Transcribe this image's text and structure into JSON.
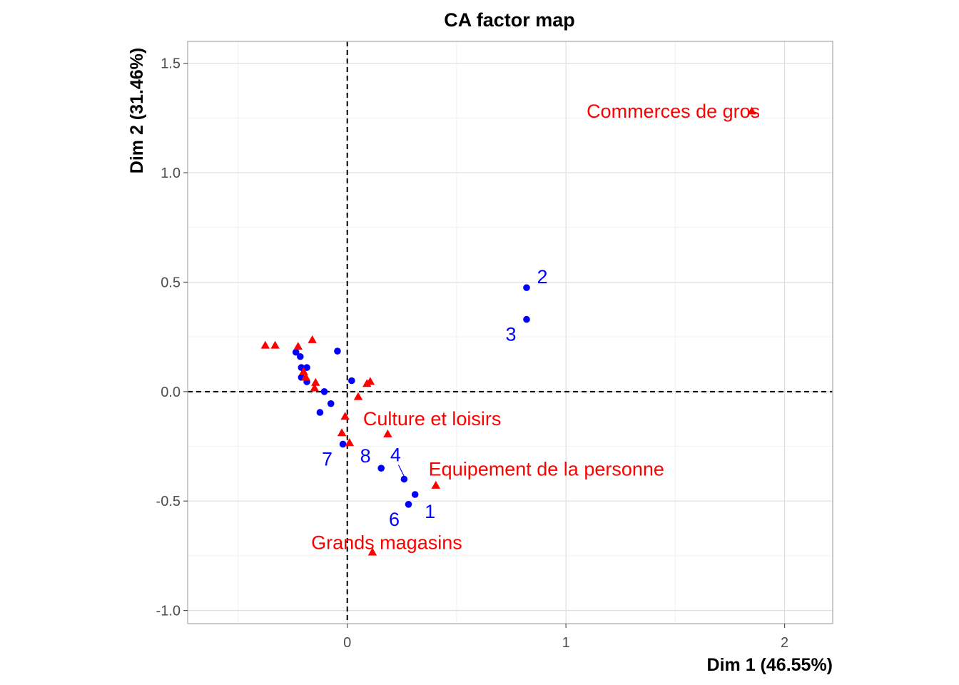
{
  "chart_data": {
    "type": "scatter",
    "title": "CA factor map",
    "xlabel": "Dim 1 (46.55%)",
    "ylabel": "Dim 2 (31.46%)",
    "xlim": [
      -0.73,
      2.22
    ],
    "ylim": [
      -1.06,
      1.6
    ],
    "xticks": [
      0,
      1,
      2
    ],
    "xtick_labels": [
      "0",
      "1",
      "2"
    ],
    "yticks": [
      -1.0,
      -0.5,
      0.0,
      0.5,
      1.0,
      1.5
    ],
    "ytick_labels": [
      "-1.0",
      "-0.5",
      "0.0",
      "0.5",
      "1.0",
      "1.5"
    ],
    "grid": true,
    "reference_lines": {
      "x": 0,
      "y": 0
    },
    "colors": {
      "rows": "#0000ff",
      "columns": "#ff0000"
    },
    "series": [
      {
        "marker": "circle",
        "color": "#0000ff",
        "points": [
          {
            "label": "2",
            "x": 0.82,
            "y": 0.475
          },
          {
            "label": "3",
            "x": 0.82,
            "y": 0.33
          },
          {
            "label": "",
            "x": -0.045,
            "y": 0.185
          },
          {
            "label": "",
            "x": -0.215,
            "y": 0.16
          },
          {
            "label": "",
            "x": -0.235,
            "y": 0.18
          },
          {
            "label": "",
            "x": -0.21,
            "y": 0.11
          },
          {
            "label": "",
            "x": -0.185,
            "y": 0.11
          },
          {
            "label": "",
            "x": -0.21,
            "y": 0.065
          },
          {
            "label": "",
            "x": -0.185,
            "y": 0.045
          },
          {
            "label": "",
            "x": 0.02,
            "y": 0.05
          },
          {
            "label": "",
            "x": -0.105,
            "y": 0.0
          },
          {
            "label": "",
            "x": -0.075,
            "y": -0.055
          },
          {
            "label": "",
            "x": -0.125,
            "y": -0.095
          },
          {
            "label": "7",
            "x": -0.02,
            "y": -0.24
          },
          {
            "label": "8",
            "x": 0.155,
            "y": -0.35
          },
          {
            "label": "4",
            "x": 0.26,
            "y": -0.4
          },
          {
            "label": "1",
            "x": 0.31,
            "y": -0.47
          },
          {
            "label": "6",
            "x": 0.28,
            "y": -0.515
          }
        ]
      },
      {
        "marker": "triangle",
        "color": "#ff0000",
        "points": [
          {
            "label": "Commerces de gros",
            "x": 1.85,
            "y": 1.28
          },
          {
            "label": "",
            "x": -0.375,
            "y": 0.21
          },
          {
            "label": "",
            "x": -0.33,
            "y": 0.21
          },
          {
            "label": "",
            "x": -0.16,
            "y": 0.235
          },
          {
            "label": "",
            "x": -0.225,
            "y": 0.205
          },
          {
            "label": "",
            "x": -0.2,
            "y": 0.09
          },
          {
            "label": "",
            "x": -0.19,
            "y": 0.065
          },
          {
            "label": "",
            "x": -0.145,
            "y": 0.04
          },
          {
            "label": "",
            "x": -0.15,
            "y": 0.015
          },
          {
            "label": "",
            "x": 0.09,
            "y": 0.035
          },
          {
            "label": "",
            "x": 0.105,
            "y": 0.045
          },
          {
            "label": "",
            "x": 0.05,
            "y": -0.025
          },
          {
            "label": "Culture et loisirs",
            "x": -0.01,
            "y": -0.115
          },
          {
            "label": "",
            "x": 0.185,
            "y": -0.195
          },
          {
            "label": "",
            "x": -0.025,
            "y": -0.19
          },
          {
            "label": "",
            "x": 0.01,
            "y": -0.235
          },
          {
            "label": "Equipement de la personne",
            "x": 0.405,
            "y": -0.43
          },
          {
            "label": "Grands magasins",
            "x": 0.115,
            "y": -0.735
          }
        ]
      }
    ]
  }
}
